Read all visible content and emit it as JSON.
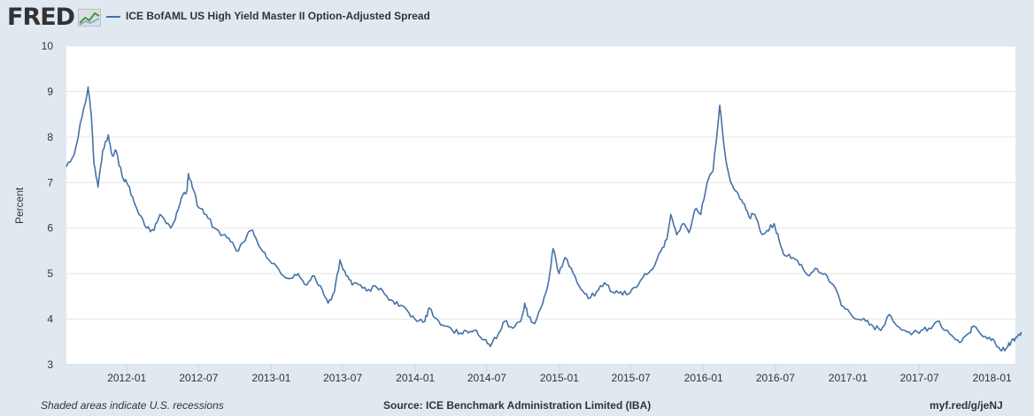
{
  "header": {
    "logo_text": "FRED",
    "logo_icon": "line-chart-icon",
    "legend_label": "ICE BofAML US High Yield Master II Option-Adjusted Spread",
    "line_color": "#4572a7"
  },
  "chart_data": {
    "type": "line",
    "title": "",
    "ylabel": "Percent",
    "xlabel": "",
    "ylim": [
      3,
      10
    ],
    "yticks": [
      "3",
      "4",
      "5",
      "6",
      "7",
      "8",
      "9",
      "10"
    ],
    "xticks": [
      "2012-01",
      "2012-07",
      "2013-01",
      "2013-07",
      "2014-01",
      "2014-07",
      "2015-01",
      "2015-07",
      "2016-01",
      "2016-07",
      "2017-01",
      "2017-07",
      "2018-01"
    ],
    "xlim": [
      "2011-08",
      "2018-03"
    ],
    "grid": true,
    "series": [
      {
        "name": "ICE BofAML US High Yield Master II Option-Adjusted Spread",
        "x": [
          "2011-08-01",
          "2011-08-20",
          "2011-09-10",
          "2011-09-25",
          "2011-10-03",
          "2011-10-10",
          "2011-10-20",
          "2011-11-01",
          "2011-11-15",
          "2011-11-25",
          "2011-12-05",
          "2011-12-20",
          "2012-01-01",
          "2012-01-15",
          "2012-02-01",
          "2012-02-20",
          "2012-03-10",
          "2012-03-25",
          "2012-04-10",
          "2012-04-25",
          "2012-05-10",
          "2012-05-20",
          "2012-06-01",
          "2012-06-05",
          "2012-06-15",
          "2012-07-01",
          "2012-07-20",
          "2012-08-10",
          "2012-09-01",
          "2012-09-20",
          "2012-10-10",
          "2012-11-01",
          "2012-11-15",
          "2012-12-01",
          "2012-12-20",
          "2013-01-15",
          "2013-02-01",
          "2013-02-20",
          "2013-03-10",
          "2013-04-01",
          "2013-04-20",
          "2013-05-10",
          "2013-05-25",
          "2013-06-10",
          "2013-06-24",
          "2013-07-10",
          "2013-07-25",
          "2013-08-15",
          "2013-09-05",
          "2013-09-25",
          "2013-10-15",
          "2013-11-05",
          "2013-11-25",
          "2013-12-15",
          "2014-01-05",
          "2014-01-25",
          "2014-02-05",
          "2014-02-25",
          "2014-03-15",
          "2014-04-05",
          "2014-04-25",
          "2014-05-15",
          "2014-06-05",
          "2014-06-25",
          "2014-07-10",
          "2014-07-31",
          "2014-08-15",
          "2014-09-05",
          "2014-09-25",
          "2014-10-05",
          "2014-10-15",
          "2014-10-30",
          "2014-11-20",
          "2014-12-05",
          "2014-12-16",
          "2014-12-31",
          "2015-01-15",
          "2015-02-05",
          "2015-02-25",
          "2015-03-15",
          "2015-04-05",
          "2015-04-25",
          "2015-05-15",
          "2015-06-05",
          "2015-06-25",
          "2015-07-15",
          "2015-08-05",
          "2015-08-25",
          "2015-09-15",
          "2015-09-30",
          "2015-10-10",
          "2015-10-25",
          "2015-11-10",
          "2015-11-25",
          "2015-12-10",
          "2015-12-25",
          "2016-01-10",
          "2016-01-25",
          "2016-02-11",
          "2016-02-25",
          "2016-03-10",
          "2016-03-25",
          "2016-04-10",
          "2016-04-25",
          "2016-05-10",
          "2016-05-25",
          "2016-06-10",
          "2016-06-28",
          "2016-07-10",
          "2016-07-25",
          "2016-08-15",
          "2016-09-05",
          "2016-09-25",
          "2016-10-15",
          "2016-11-04",
          "2016-11-25",
          "2016-12-15",
          "2017-01-05",
          "2017-01-25",
          "2017-02-15",
          "2017-03-05",
          "2017-03-25",
          "2017-04-15",
          "2017-05-05",
          "2017-05-25",
          "2017-06-15",
          "2017-07-05",
          "2017-07-25",
          "2017-08-15",
          "2017-09-05",
          "2017-09-25",
          "2017-10-15",
          "2017-11-05",
          "2017-11-15",
          "2017-12-05",
          "2017-12-25",
          "2018-01-10",
          "2018-01-25",
          "2018-02-10",
          "2018-02-20",
          "2018-03-05",
          "2018-03-16"
        ],
        "y": [
          7.35,
          7.6,
          8.45,
          9.1,
          8.5,
          7.4,
          6.9,
          7.7,
          8.05,
          7.6,
          7.7,
          7.15,
          7.0,
          6.7,
          6.3,
          6.0,
          5.95,
          6.3,
          6.1,
          6.05,
          6.4,
          6.7,
          6.8,
          7.2,
          6.9,
          6.45,
          6.3,
          6.0,
          5.85,
          5.7,
          5.5,
          5.85,
          5.95,
          5.6,
          5.35,
          5.15,
          4.95,
          4.9,
          5.0,
          4.75,
          4.95,
          4.65,
          4.35,
          4.6,
          5.3,
          4.95,
          4.75,
          4.75,
          4.65,
          4.7,
          4.55,
          4.4,
          4.3,
          4.15,
          3.95,
          3.95,
          4.25,
          4.0,
          3.85,
          3.75,
          3.7,
          3.7,
          3.75,
          3.55,
          3.4,
          3.7,
          3.95,
          3.8,
          3.95,
          4.35,
          4.05,
          3.9,
          4.35,
          4.85,
          5.55,
          5.0,
          5.35,
          5.0,
          4.65,
          4.45,
          4.6,
          4.8,
          4.6,
          4.6,
          4.55,
          4.7,
          5.0,
          5.1,
          5.5,
          5.75,
          6.3,
          5.85,
          6.1,
          5.9,
          6.4,
          6.3,
          7.0,
          7.25,
          8.7,
          7.6,
          7.0,
          6.8,
          6.55,
          6.25,
          6.3,
          5.9,
          5.95,
          6.1,
          5.75,
          5.4,
          5.35,
          5.2,
          4.95,
          5.1,
          5.0,
          4.75,
          4.3,
          4.15,
          4.0,
          3.95,
          3.85,
          3.75,
          4.1,
          3.85,
          3.75,
          3.7,
          3.75,
          3.8,
          3.95,
          3.75,
          3.6,
          3.5,
          3.7,
          3.85,
          3.65,
          3.6,
          3.45,
          3.3,
          3.4,
          3.55,
          3.6,
          3.72
        ]
      }
    ]
  },
  "footer": {
    "note": "Shaded areas indicate U.S. recessions",
    "source": "Source: ICE Benchmark Administration Limited (IBA)",
    "url": "myf.red/g/jeNJ"
  }
}
